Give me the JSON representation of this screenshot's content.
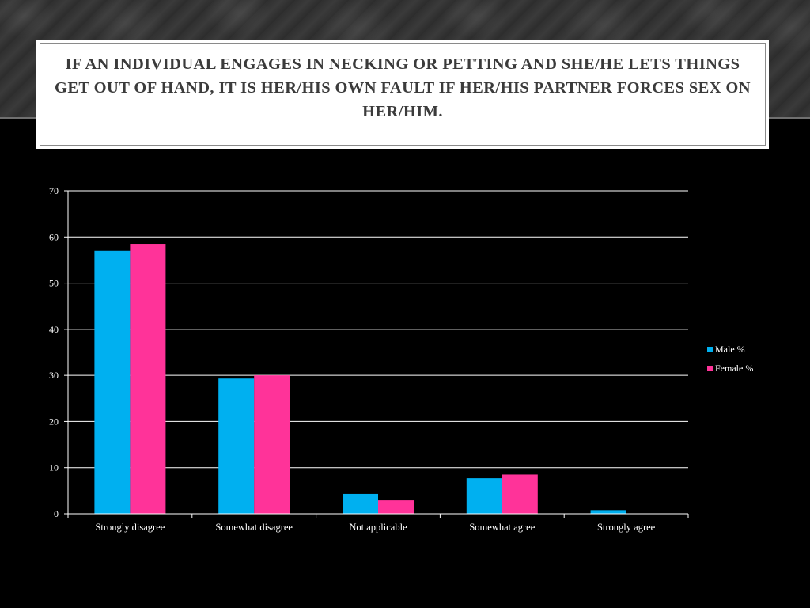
{
  "slide": {
    "title": "If an individual engages in necking or petting and she/he lets things get out of hand, it is her/his own fault if her/his partner forces sex on her/him."
  },
  "chart_data": {
    "type": "bar",
    "title": "",
    "xlabel": "",
    "ylabel": "",
    "categories": [
      "Strongly disagree",
      "Somewhat disagree",
      "Not applicable",
      "Somewhat agree",
      "Strongly agree"
    ],
    "series": [
      {
        "name": "Male %",
        "color": "#00b0f0",
        "values": [
          57,
          29.3,
          4.3,
          7.7,
          0.8
        ]
      },
      {
        "name": "Female %",
        "color": "#ff3399",
        "values": [
          58.5,
          30,
          2.9,
          8.5,
          0
        ]
      }
    ],
    "ylim": [
      0,
      70
    ],
    "yticks": [
      0,
      10,
      20,
      30,
      40,
      50,
      60,
      70
    ],
    "grid": true,
    "legend_position": "right",
    "colors": {
      "background": "#000000",
      "axis": "#ffffff",
      "grid": "#ffffff",
      "text": "#ffffff"
    }
  }
}
